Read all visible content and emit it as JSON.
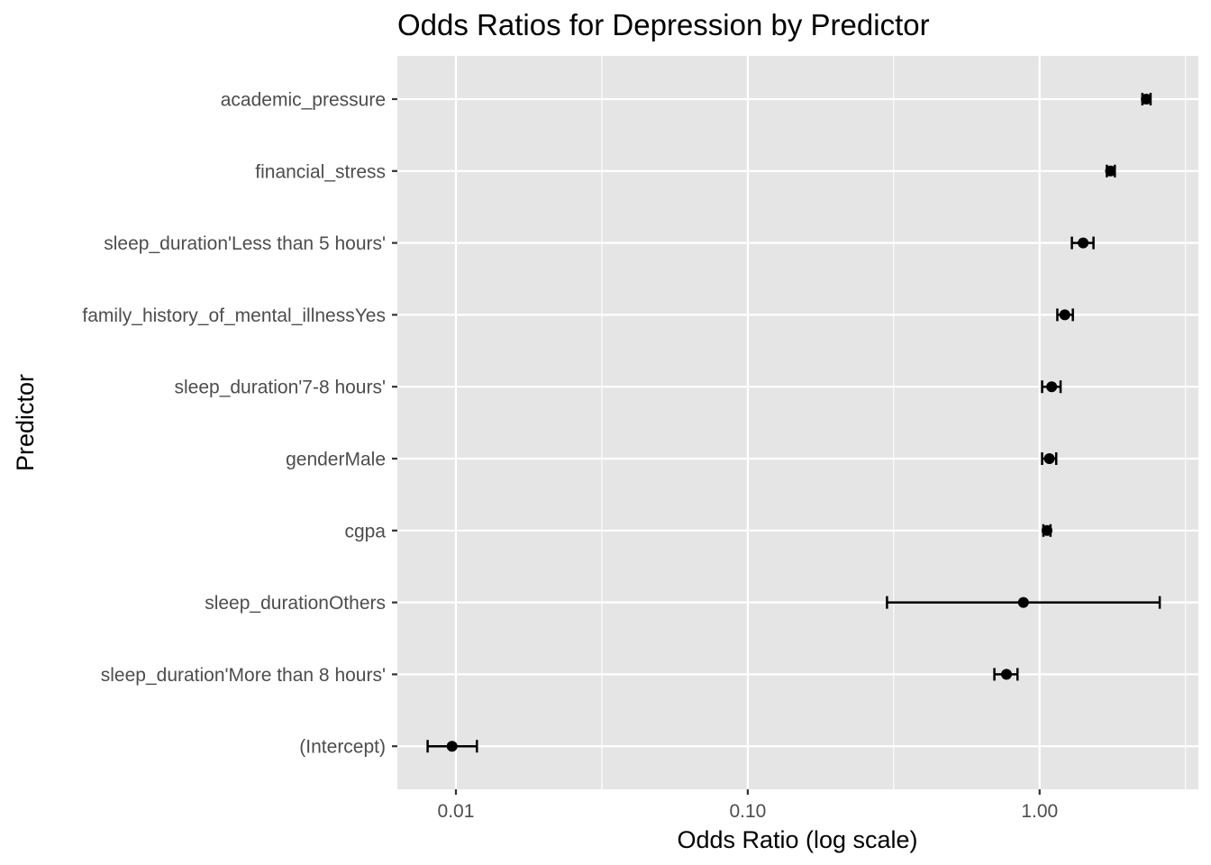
{
  "chart_data": {
    "type": "scatter",
    "title": "Odds Ratios for Depression by Predictor",
    "xlabel": "Odds Ratio (log scale)",
    "ylabel": "Predictor",
    "x_scale": "log10",
    "xlim": [
      0.0063,
      3.5
    ],
    "x_ticks": [
      {
        "value": 0.01,
        "label": "0.01"
      },
      {
        "value": 0.1,
        "label": "0.10"
      },
      {
        "value": 1.0,
        "label": "1.00"
      }
    ],
    "grid": true,
    "panel_color": "#e5e5e5",
    "grid_color": "#ffffff",
    "point_color": "#000000",
    "categories": [
      "academic_pressure",
      "financial_stress",
      "sleep_duration'Less than 5 hours'",
      "family_history_of_mental_illnessYes",
      "sleep_duration'7-8 hours'",
      "genderMale",
      "cgpa",
      "sleep_durationOthers",
      "sleep_duration'More than 8 hours'",
      "(Intercept)"
    ],
    "points": [
      {
        "label": "academic_pressure",
        "estimate": 2.32,
        "lower": 2.25,
        "upper": 2.4
      },
      {
        "label": "financial_stress",
        "estimate": 1.75,
        "lower": 1.7,
        "upper": 1.81
      },
      {
        "label": "sleep_duration'Less than 5 hours'",
        "estimate": 1.41,
        "lower": 1.29,
        "upper": 1.53
      },
      {
        "label": "family_history_of_mental_illnessYes",
        "estimate": 1.22,
        "lower": 1.15,
        "upper": 1.3
      },
      {
        "label": "sleep_duration'7-8 hours'",
        "estimate": 1.1,
        "lower": 1.02,
        "upper": 1.18
      },
      {
        "label": "genderMale",
        "estimate": 1.08,
        "lower": 1.02,
        "upper": 1.14
      },
      {
        "label": "cgpa",
        "estimate": 1.06,
        "lower": 1.03,
        "upper": 1.09
      },
      {
        "label": "sleep_durationOthers",
        "estimate": 0.88,
        "lower": 0.3,
        "upper": 2.58
      },
      {
        "label": "sleep_duration'More than 8 hours'",
        "estimate": 0.77,
        "lower": 0.7,
        "upper": 0.84
      },
      {
        "label": "(Intercept)",
        "estimate": 0.0097,
        "lower": 0.008,
        "upper": 0.0118
      }
    ]
  }
}
